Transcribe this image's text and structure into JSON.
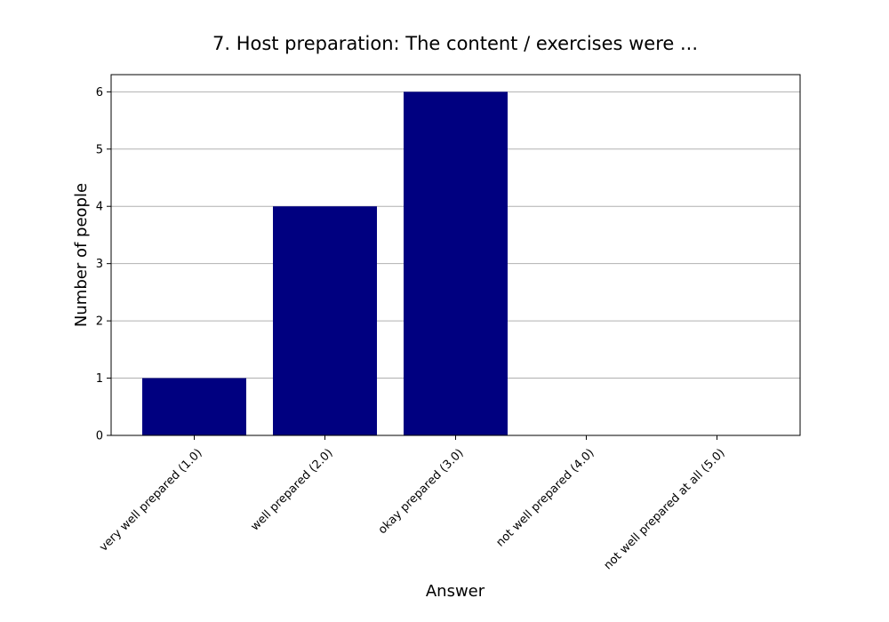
{
  "chart_data": {
    "type": "bar",
    "title": "7. Host preparation: The content / exercises were ...",
    "xlabel": "Answer",
    "ylabel": "Number of people",
    "categories": [
      "very well prepared (1.0)",
      "well prepared (2.0)",
      "okay prepared (3.0)",
      "not well prepared (4.0)",
      "not well prepared at all (5.0)"
    ],
    "values": [
      1,
      4,
      6,
      0,
      0
    ],
    "ylim": [
      0,
      6.3
    ],
    "yticks": [
      0,
      1,
      2,
      3,
      4,
      5,
      6
    ],
    "grid": "y",
    "bar_color": "#000080",
    "grid_color": "#b0b0b0"
  }
}
